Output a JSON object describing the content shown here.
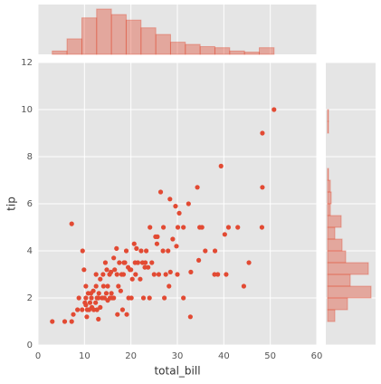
{
  "chart_data": [
    {
      "type": "scatter",
      "x_label": "total_bill",
      "y_label": "tip",
      "color": "#e24a33",
      "xlim": [
        0,
        60
      ],
      "ylim": [
        0,
        12
      ],
      "xticks": [
        0,
        10,
        20,
        30,
        40,
        50,
        60
      ],
      "yticks": [
        0,
        2,
        4,
        6,
        8,
        10,
        12
      ],
      "grid": true,
      "x": [
        3.07,
        5.75,
        7.25,
        7.25,
        8.5,
        8.8,
        9.5,
        9.6,
        10.1,
        10.3,
        10.3,
        10.6,
        10.3,
        10.5,
        11,
        11.2,
        11.4,
        11.5,
        11.9,
        12,
        12.4,
        12.5,
        12.7,
        12.5,
        13,
        13.1,
        13.4,
        13.4,
        13.8,
        14,
        14.1,
        14.3,
        14.5,
        14.8,
        15,
        15,
        15.4,
        15.5,
        15.7,
        15.8,
        16,
        16.3,
        16.5,
        16.9,
        17,
        17.3,
        17.5,
        17.8,
        18,
        18.2,
        18.4,
        18.7,
        19,
        19.4,
        19.5,
        19.8,
        20,
        20.3,
        20.7,
        20.9,
        21,
        21.2,
        21.5,
        22,
        22.2,
        22.7,
        23,
        23.3,
        23.7,
        24,
        24.1,
        24.5,
        25,
        25.3,
        25.6,
        26,
        26.4,
        26.9,
        27,
        27.2,
        28,
        28.2,
        28.5,
        29,
        29.6,
        29.8,
        30,
        30.1,
        30.4,
        31.3,
        31.3,
        32.4,
        32.8,
        32.9,
        34.3,
        34.8,
        35.3,
        34.6,
        36,
        38,
        38.1,
        38.7,
        39.4,
        40.2,
        40.5,
        41,
        43,
        44.3,
        45.4,
        48.2,
        48.3,
        48.3,
        50.8,
        9.9,
        11.6,
        13,
        17.1,
        22.5,
        27.5,
        20.1,
        18.5,
        14.7,
        16.3,
        12.7,
        25.7,
        23.1,
        19.1,
        28.4,
        7.6,
        10.8
      ],
      "y": [
        1,
        1,
        1,
        5.15,
        1.5,
        2,
        1.5,
        4,
        1.8,
        1.7,
        2,
        1.5,
        2.5,
        1.2,
        1.5,
        1.8,
        2.2,
        2,
        2.3,
        1.5,
        1.8,
        2.5,
        2,
        3,
        2,
        2.2,
        1.6,
        2.8,
        2,
        3,
        2.5,
        2,
        3.5,
        3.2,
        1.9,
        2.5,
        3,
        2,
        3.1,
        2.2,
        2,
        3.7,
        3.2,
        4.1,
        3,
        2.5,
        3.5,
        2.3,
        3,
        1.5,
        3,
        3.5,
        4,
        3.3,
        2,
        3.2,
        3.2,
        2.8,
        4.3,
        3.5,
        3,
        4.1,
        3.5,
        2.8,
        4,
        2,
        3.3,
        4,
        3.3,
        2,
        5,
        3.5,
        3,
        4.6,
        4.3,
        3,
        6.5,
        4,
        5,
        2,
        4,
        2.5,
        3.1,
        4.5,
        5.9,
        4.2,
        3,
        5,
        5.6,
        2,
        5,
        6,
        1.2,
        3.1,
        6.7,
        5,
        5,
        3.6,
        4,
        3,
        4,
        3,
        7.6,
        4.7,
        3,
        5,
        5,
        2.5,
        3.5,
        5,
        6.7,
        9,
        10,
        3.2,
        1.6,
        1.1,
        1.3,
        3.5,
        3,
        2,
        3.5,
        2.2,
        2,
        1.5,
        4.6,
        3.5,
        1.3,
        6.2,
        1.3,
        2.2
      ]
    },
    {
      "type": "histogram",
      "orientation": "vertical",
      "color": "#e24a33",
      "alpha": 0.4,
      "bins": [
        3.07,
        6.25,
        9.44,
        12.62,
        15.8,
        18.98,
        22.17,
        25.35,
        28.53,
        31.71,
        34.9,
        38.08,
        41.26,
        44.45,
        47.63,
        50.81
      ],
      "values": [
        3,
        14,
        33,
        41,
        36,
        31,
        24,
        18,
        11,
        9,
        7,
        6,
        3,
        2,
        6
      ]
    },
    {
      "type": "histogram",
      "orientation": "horizontal",
      "color": "#e24a33",
      "alpha": 0.4,
      "bins": [
        1,
        1.5,
        2,
        2.5,
        3,
        3.5,
        4,
        4.5,
        5,
        5.5,
        6,
        6.5,
        7,
        7.5,
        8,
        8.5,
        9,
        9.5,
        10
      ],
      "values": [
        8,
        22,
        48,
        25,
        45,
        20,
        16,
        8,
        15,
        3,
        4,
        3,
        1,
        0,
        0,
        0,
        1,
        1
      ]
    }
  ]
}
